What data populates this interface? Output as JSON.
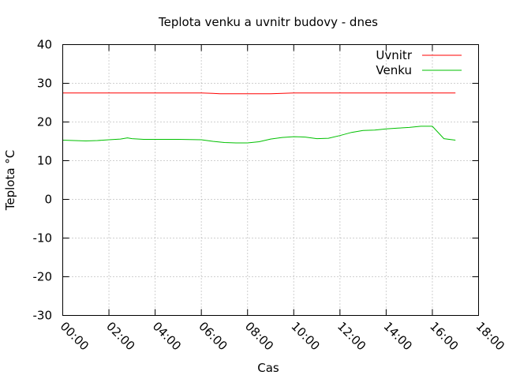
{
  "chart_data": {
    "type": "line",
    "title": "Teplota venku a uvnitr budovy - dnes",
    "xlabel": "Cas",
    "ylabel": "Teplota °C",
    "xlim": [
      0,
      18
    ],
    "ylim": [
      -30,
      40
    ],
    "x_ticks": [
      0,
      2,
      4,
      6,
      8,
      10,
      12,
      14,
      16,
      18
    ],
    "x_tick_labels": [
      "00:00",
      "02:00",
      "04:00",
      "06:00",
      "08:00",
      "10:00",
      "12:00",
      "14:00",
      "16:00",
      "18:00"
    ],
    "y_ticks": [
      -30,
      -20,
      -10,
      0,
      10,
      20,
      30,
      40
    ],
    "y_tick_labels": [
      "-30",
      "-20",
      "-10",
      "0",
      "10",
      "20",
      "30",
      "40"
    ],
    "grid": true,
    "legend_position": "top-right",
    "series": [
      {
        "name": "Uvnitr",
        "color": "#ff0000",
        "x": [
          0,
          1,
          2,
          3,
          4,
          5,
          6,
          6.5,
          6.8,
          7,
          8,
          9,
          9.5,
          10,
          11,
          12,
          13,
          14,
          15,
          16,
          17
        ],
        "y": [
          27.5,
          27.5,
          27.5,
          27.5,
          27.5,
          27.5,
          27.5,
          27.4,
          27.3,
          27.3,
          27.3,
          27.3,
          27.4,
          27.5,
          27.5,
          27.5,
          27.5,
          27.5,
          27.5,
          27.5,
          27.5
        ]
      },
      {
        "name": "Venku",
        "color": "#00c000",
        "x": [
          0,
          0.5,
          1,
          1.5,
          2,
          2.5,
          2.8,
          3,
          3.5,
          4,
          5,
          6,
          6.5,
          7,
          7.5,
          8,
          8.5,
          9,
          9.5,
          10,
          10.5,
          11,
          11.5,
          12,
          12.5,
          13,
          13.5,
          14,
          14.5,
          15,
          15.5,
          16,
          16.5,
          17
        ],
        "y": [
          15.3,
          15.2,
          15.1,
          15.2,
          15.4,
          15.6,
          15.9,
          15.7,
          15.5,
          15.5,
          15.5,
          15.4,
          15.0,
          14.7,
          14.6,
          14.6,
          14.9,
          15.6,
          16.0,
          16.2,
          16.1,
          15.7,
          15.8,
          16.5,
          17.3,
          17.8,
          17.9,
          18.2,
          18.4,
          18.6,
          18.9,
          18.9,
          15.7,
          15.3
        ]
      }
    ]
  }
}
